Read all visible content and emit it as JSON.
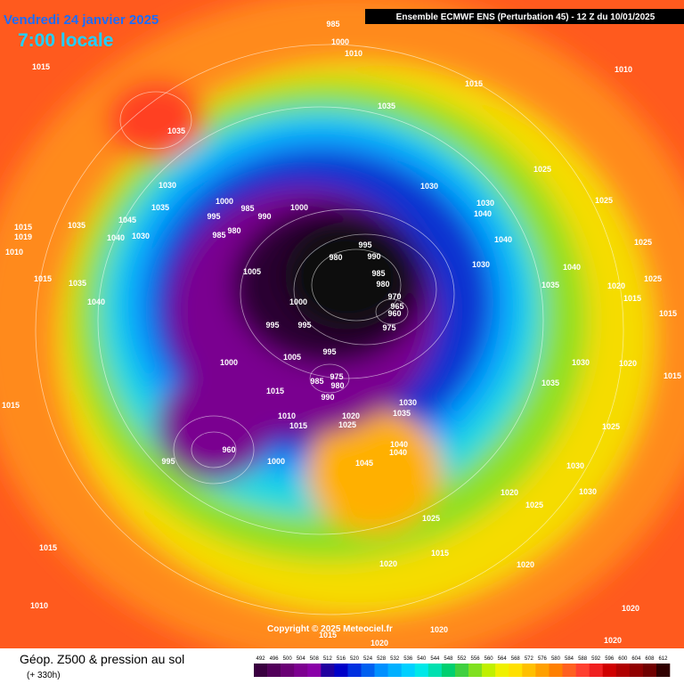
{
  "header": {
    "date": "Vendredi 24 janvier 2025",
    "time": "7:00 locale",
    "model": "Ensemble ECMWF ENS  (Perturbation 45)  -  12 Z du 10/01/2025"
  },
  "footer": {
    "title": "Géop. Z500 & pression au sol",
    "subtitle": "(+ 330h)",
    "copyright": "Copyright © 2025 Meteociel.fr"
  },
  "colorbar": {
    "labels": [
      "492",
      "496",
      "500",
      "504",
      "508",
      "512",
      "516",
      "520",
      "524",
      "528",
      "532",
      "536",
      "540",
      "544",
      "548",
      "552",
      "556",
      "560",
      "564",
      "568",
      "572",
      "576",
      "580",
      "584",
      "588",
      "592",
      "596",
      "600",
      "604",
      "608",
      "612"
    ],
    "colors": [
      "#3a0040",
      "#52005a",
      "#6a0075",
      "#7d0090",
      "#8a00a8",
      "#2000a0",
      "#0000c8",
      "#0030e0",
      "#0060f0",
      "#0090ff",
      "#00b0ff",
      "#00d0ff",
      "#00e8e8",
      "#00e0b0",
      "#00d070",
      "#40d040",
      "#80e020",
      "#c0f000",
      "#f0f000",
      "#ffe000",
      "#ffc000",
      "#ffa000",
      "#ff8000",
      "#ff6020",
      "#ff4030",
      "#f02020",
      "#d00000",
      "#b00000",
      "#900000",
      "#700000",
      "#300000"
    ]
  },
  "isobar_labels": [
    "985",
    "1000",
    "1010",
    "1015",
    "1010",
    "1015",
    "1035",
    "1035",
    "1030",
    "1030",
    "1030",
    "1025",
    "1025",
    "1025",
    "1035",
    "1045",
    "1035",
    "1030",
    "1040",
    "1015",
    "1019",
    "1010",
    "1015",
    "1035",
    "1040",
    "1000",
    "985",
    "995",
    "990",
    "980",
    "985",
    "1000",
    "995",
    "980",
    "990",
    "985",
    "980",
    "970",
    "965",
    "960",
    "975",
    "1005",
    "1000",
    "995",
    "995",
    "1000",
    "1005",
    "995",
    "975",
    "985",
    "980",
    "990",
    "1015",
    "1010",
    "1015",
    "1020",
    "1025",
    "1030",
    "1035",
    "1000",
    "995",
    "960",
    "1045",
    "1040",
    "1040",
    "1030",
    "1040",
    "1040",
    "1040",
    "1035",
    "1020",
    "1025",
    "1015",
    "1015",
    "1035",
    "1030",
    "1020",
    "1015",
    "1030",
    "1030",
    "1025",
    "1020",
    "1025",
    "1015",
    "1020",
    "1020",
    "1015",
    "1015",
    "1010",
    "1015",
    "1020",
    "1020",
    "1020",
    "1020",
    "1025"
  ]
}
